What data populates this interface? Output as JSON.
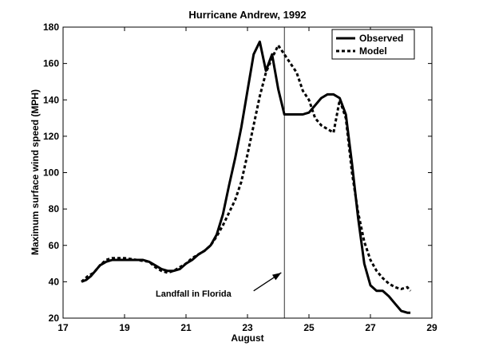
{
  "chart_data": {
    "type": "line",
    "title": "Hurricane Andrew, 1992",
    "xlabel": "August",
    "ylabel": "Maximum surface wind speed (MPH)",
    "xlim": [
      17,
      29
    ],
    "ylim": [
      20,
      180
    ],
    "xticks": [
      17,
      19,
      21,
      23,
      25,
      27,
      29
    ],
    "yticks": [
      20,
      40,
      60,
      80,
      100,
      120,
      140,
      160,
      180
    ],
    "grid": false,
    "legend_position": "top-right",
    "series": [
      {
        "name": "Observed",
        "style": "solid",
        "color": "#000000",
        "x": [
          17.6,
          17.75,
          17.9,
          18.0,
          18.2,
          18.4,
          18.6,
          19.0,
          19.4,
          19.6,
          19.8,
          20.0,
          20.2,
          20.4,
          20.6,
          20.8,
          21.0,
          21.2,
          21.4,
          21.6,
          21.8,
          22.0,
          22.2,
          22.4,
          22.6,
          22.8,
          23.0,
          23.2,
          23.4,
          23.6,
          23.8,
          24.0,
          24.2,
          24.4,
          24.6,
          24.8,
          25.0,
          25.2,
          25.4,
          25.6,
          25.8,
          26.0,
          26.2,
          26.4,
          26.6,
          26.8,
          27.0,
          27.2,
          27.4,
          27.6,
          27.8,
          28.0,
          28.2,
          28.3
        ],
        "y": [
          40,
          41,
          43,
          45,
          49,
          51,
          52,
          52,
          52,
          52,
          51,
          49,
          47,
          46,
          46,
          47,
          50,
          52,
          55,
          57,
          60,
          66,
          77,
          93,
          108,
          125,
          145,
          165,
          172,
          156,
          165,
          146,
          132,
          132,
          132,
          132,
          133,
          137,
          141,
          143,
          143,
          141,
          132,
          105,
          75,
          50,
          38,
          35,
          35,
          32,
          28,
          24,
          23,
          23
        ]
      },
      {
        "name": "Model",
        "style": "dashed",
        "color": "#000000",
        "x": [
          17.6,
          17.8,
          18.0,
          18.2,
          18.4,
          18.6,
          19.0,
          19.4,
          19.8,
          20.0,
          20.2,
          20.4,
          20.6,
          20.8,
          21.0,
          21.2,
          21.4,
          21.6,
          21.8,
          22.0,
          22.2,
          22.4,
          22.6,
          22.8,
          23.0,
          23.2,
          23.4,
          23.6,
          23.8,
          24.0,
          24.2,
          24.4,
          24.6,
          24.8,
          25.0,
          25.2,
          25.4,
          25.6,
          25.8,
          26.0,
          26.2,
          26.4,
          26.6,
          26.8,
          27.0,
          27.2,
          27.4,
          27.6,
          27.8,
          28.0,
          28.2,
          28.3
        ],
        "y": [
          40,
          43,
          45,
          49,
          52,
          53,
          53,
          52,
          51,
          48,
          46,
          45,
          46,
          48,
          50,
          53,
          55,
          57,
          60,
          65,
          71,
          78,
          85,
          95,
          110,
          126,
          142,
          155,
          163,
          170,
          165,
          160,
          155,
          145,
          140,
          130,
          126,
          124,
          122,
          140,
          130,
          100,
          78,
          62,
          52,
          46,
          42,
          39,
          37,
          36,
          37,
          35
        ]
      }
    ],
    "reference_line": {
      "x": 24.2
    },
    "annotation": {
      "text": "Landfall in Florida",
      "arrow_from": [
        23.2,
        35
      ],
      "arrow_to": [
        24.1,
        45
      ]
    }
  }
}
